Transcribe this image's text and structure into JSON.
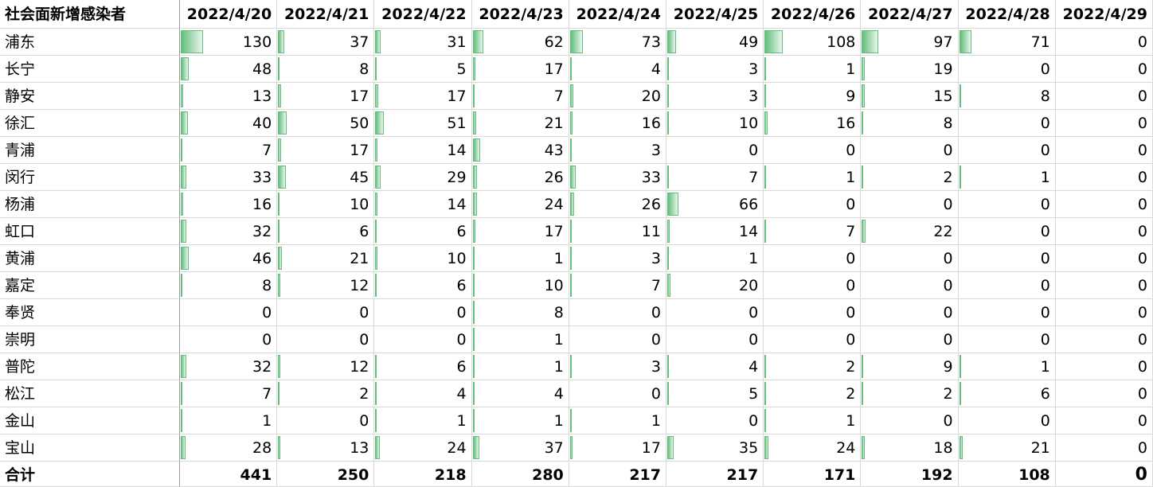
{
  "table": {
    "header": [
      "社会面新增感染者",
      "2022/4/20",
      "2022/4/21",
      "2022/4/22",
      "2022/4/23",
      "2022/4/24",
      "2022/4/25",
      "2022/4/26",
      "2022/4/27",
      "2022/4/28",
      "2022/4/29"
    ],
    "rows": [
      [
        "浦东",
        130,
        37,
        31,
        62,
        73,
        49,
        108,
        97,
        71,
        0
      ],
      [
        "长宁",
        48,
        8,
        5,
        17,
        4,
        3,
        1,
        19,
        0,
        0
      ],
      [
        "静安",
        13,
        17,
        17,
        7,
        20,
        3,
        9,
        15,
        8,
        0
      ],
      [
        "徐汇",
        40,
        50,
        51,
        21,
        16,
        10,
        16,
        8,
        0,
        0
      ],
      [
        "青浦",
        7,
        17,
        14,
        43,
        3,
        0,
        0,
        0,
        0,
        0
      ],
      [
        "闵行",
        33,
        45,
        29,
        26,
        33,
        7,
        1,
        2,
        1,
        0
      ],
      [
        "杨浦",
        16,
        10,
        14,
        24,
        26,
        66,
        0,
        0,
        0,
        0
      ],
      [
        "虹口",
        32,
        6,
        6,
        17,
        11,
        14,
        7,
        22,
        0,
        0
      ],
      [
        "黄浦",
        46,
        21,
        10,
        1,
        3,
        1,
        0,
        0,
        0,
        0
      ],
      [
        "嘉定",
        8,
        12,
        6,
        10,
        7,
        20,
        0,
        0,
        0,
        0
      ],
      [
        "奉贤",
        0,
        0,
        0,
        8,
        0,
        0,
        0,
        0,
        0,
        0
      ],
      [
        "崇明",
        0,
        0,
        0,
        1,
        0,
        0,
        0,
        0,
        0,
        0
      ],
      [
        "普陀",
        32,
        12,
        6,
        1,
        3,
        4,
        2,
        9,
        1,
        0
      ],
      [
        "松江",
        7,
        2,
        4,
        4,
        0,
        5,
        2,
        2,
        6,
        0
      ],
      [
        "金山",
        1,
        0,
        1,
        1,
        1,
        0,
        1,
        0,
        0,
        0
      ],
      [
        "宝山",
        28,
        13,
        24,
        37,
        17,
        35,
        24,
        18,
        21,
        0
      ]
    ],
    "total_row": [
      "合计",
      441,
      250,
      218,
      280,
      217,
      217,
      171,
      192,
      108,
      0
    ]
  }
}
